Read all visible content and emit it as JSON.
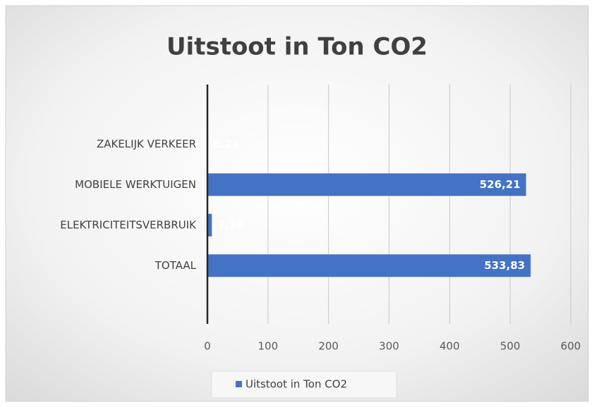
{
  "chart_data": {
    "type": "bar",
    "orientation": "horizontal",
    "title": "Uitstoot in Ton CO2",
    "categories": [
      "ZAKELIJK VERKEER",
      "MOBIELE WERKTUIGEN",
      "ELEKTRICITEITSVERBRUIK",
      "TOTAAL"
    ],
    "series": [
      {
        "name": "Uitstoot in Ton CO2",
        "color": "#4472c4",
        "values": [
          0.24,
          526.21,
          7.38,
          533.83
        ],
        "value_labels": [
          "0,24",
          "526,21",
          "7,38",
          "533,83"
        ]
      }
    ],
    "xlim": [
      0,
      600
    ],
    "xticks": [
      0,
      100,
      200,
      300,
      400,
      500,
      600
    ],
    "grid": true,
    "legend": "bottom"
  }
}
